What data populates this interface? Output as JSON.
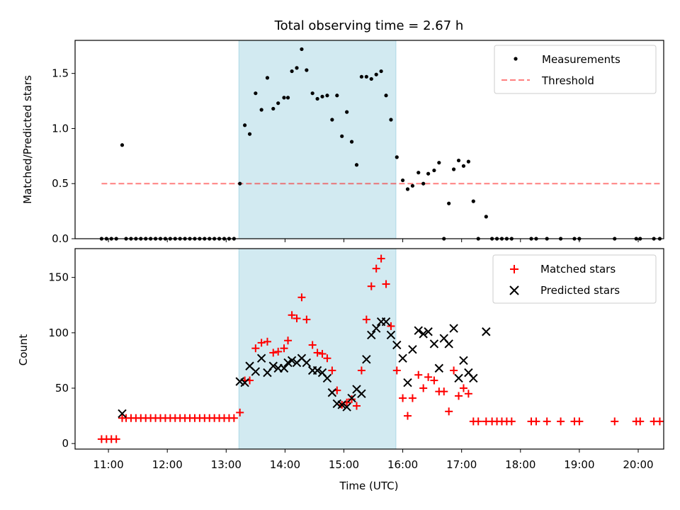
{
  "title": "Total observing time = 2.67 h",
  "colors": {
    "shade": "#add8e6",
    "measurement": "#000000",
    "threshold": "#ff0000",
    "matched": "#ff0000",
    "predicted": "#000000"
  },
  "chart_data": [
    {
      "type": "scatter",
      "title": "Total observing time = 2.67 h",
      "xlabel": "",
      "ylabel": "Matched/Predicted stars",
      "xlim": [
        "10:26",
        "20:26"
      ],
      "ylim": [
        0,
        1.8
      ],
      "yticks": [
        0.0,
        0.5,
        1.0,
        1.5
      ],
      "ytick_labels": [
        "0.0",
        "0.5",
        "1.0",
        "1.5"
      ],
      "shaded_region": [
        "13:13",
        "15:53"
      ],
      "legend": {
        "position": "top-right",
        "entries": [
          "Measurements",
          "Threshold"
        ]
      },
      "series": [
        {
          "name": "Measurements",
          "kind": "points",
          "points": [
            [
              "10:53",
              0
            ],
            [
              "10:58",
              0
            ],
            [
              "11:03",
              0
            ],
            [
              "11:08",
              0
            ],
            [
              "11:14",
              0.85
            ],
            [
              "11:18",
              0
            ],
            [
              "11:23",
              0
            ],
            [
              "11:28",
              0
            ],
            [
              "11:33",
              0
            ],
            [
              "11:38",
              0
            ],
            [
              "11:43",
              0
            ],
            [
              "11:48",
              0
            ],
            [
              "11:53",
              0
            ],
            [
              "11:58",
              0
            ],
            [
              "12:03",
              0
            ],
            [
              "12:08",
              0
            ],
            [
              "12:13",
              0
            ],
            [
              "12:18",
              0
            ],
            [
              "12:23",
              0
            ],
            [
              "12:28",
              0
            ],
            [
              "12:33",
              0
            ],
            [
              "12:38",
              0
            ],
            [
              "12:43",
              0
            ],
            [
              "12:48",
              0
            ],
            [
              "12:53",
              0
            ],
            [
              "12:58",
              0
            ],
            [
              "13:03",
              0
            ],
            [
              "13:08",
              0
            ],
            [
              "13:14",
              0.5
            ],
            [
              "13:19",
              1.03
            ],
            [
              "13:24",
              0.95
            ],
            [
              "13:30",
              1.32
            ],
            [
              "13:36",
              1.17
            ],
            [
              "13:42",
              1.46
            ],
            [
              "13:48",
              1.18
            ],
            [
              "13:53",
              1.23
            ],
            [
              "13:59",
              1.28
            ],
            [
              "14:03",
              1.28
            ],
            [
              "14:07",
              1.52
            ],
            [
              "14:12",
              1.55
            ],
            [
              "14:17",
              1.72
            ],
            [
              "14:22",
              1.53
            ],
            [
              "14:28",
              1.32
            ],
            [
              "14:33",
              1.27
            ],
            [
              "14:38",
              1.29
            ],
            [
              "14:43",
              1.3
            ],
            [
              "14:48",
              1.08
            ],
            [
              "14:53",
              1.3
            ],
            [
              "14:58",
              0.93
            ],
            [
              "15:03",
              1.15
            ],
            [
              "15:08",
              0.88
            ],
            [
              "15:13",
              0.67
            ],
            [
              "15:18",
              1.47
            ],
            [
              "15:23",
              1.47
            ],
            [
              "15:28",
              1.45
            ],
            [
              "15:33",
              1.49
            ],
            [
              "15:38",
              1.52
            ],
            [
              "15:43",
              1.3
            ],
            [
              "15:48",
              1.08
            ],
            [
              "15:54",
              0.74
            ],
            [
              "16:00",
              0.53
            ],
            [
              "16:05",
              0.45
            ],
            [
              "16:10",
              0.48
            ],
            [
              "16:16",
              0.6
            ],
            [
              "16:21",
              0.5
            ],
            [
              "16:26",
              0.59
            ],
            [
              "16:32",
              0.62
            ],
            [
              "16:37",
              0.69
            ],
            [
              "16:42",
              0
            ],
            [
              "16:47",
              0.32
            ],
            [
              "16:52",
              0.63
            ],
            [
              "16:57",
              0.71
            ],
            [
              "17:02",
              0.66
            ],
            [
              "17:07",
              0.7
            ],
            [
              "17:12",
              0.34
            ],
            [
              "17:17",
              0
            ],
            [
              "17:25",
              0.2
            ],
            [
              "17:31",
              0
            ],
            [
              "17:36",
              0
            ],
            [
              "17:41",
              0
            ],
            [
              "17:46",
              0
            ],
            [
              "17:51",
              0
            ],
            [
              "18:11",
              0
            ],
            [
              "18:16",
              0
            ],
            [
              "18:27",
              0
            ],
            [
              "18:41",
              0
            ],
            [
              "18:55",
              0
            ],
            [
              "19:00",
              0
            ],
            [
              "19:36",
              0
            ],
            [
              "19:58",
              0
            ],
            [
              "20:02",
              0
            ],
            [
              "20:16",
              0
            ],
            [
              "20:22",
              0
            ]
          ]
        },
        {
          "name": "Threshold",
          "kind": "dashed-line",
          "points": [
            [
              "10:53",
              0.5
            ],
            [
              "20:22",
              0.5
            ]
          ]
        }
      ]
    },
    {
      "type": "scatter",
      "title": "",
      "xlabel": "Time (UTC)",
      "ylabel": "Count",
      "xlim": [
        "10:26",
        "20:26"
      ],
      "ylim": [
        -5,
        176
      ],
      "yticks": [
        0,
        50,
        100,
        150
      ],
      "ytick_labels": [
        "0",
        "50",
        "100",
        "150"
      ],
      "xticks": [
        "11:00",
        "12:00",
        "13:00",
        "14:00",
        "15:00",
        "16:00",
        "17:00",
        "18:00",
        "19:00",
        "20:00"
      ],
      "shaded_region": [
        "13:13",
        "15:53"
      ],
      "legend": {
        "position": "top-right",
        "entries": [
          "Matched stars",
          "Predicted stars"
        ]
      },
      "series": [
        {
          "name": "Matched stars",
          "marker": "plus",
          "points": [
            [
              "10:53",
              4
            ],
            [
              "10:58",
              4
            ],
            [
              "11:03",
              4
            ],
            [
              "11:08",
              4
            ],
            [
              "11:14",
              23
            ],
            [
              "11:18",
              23
            ],
            [
              "11:23",
              23
            ],
            [
              "11:28",
              23
            ],
            [
              "11:33",
              23
            ],
            [
              "11:38",
              23
            ],
            [
              "11:43",
              23
            ],
            [
              "11:48",
              23
            ],
            [
              "11:53",
              23
            ],
            [
              "11:58",
              23
            ],
            [
              "12:03",
              23
            ],
            [
              "12:08",
              23
            ],
            [
              "12:13",
              23
            ],
            [
              "12:18",
              23
            ],
            [
              "12:23",
              23
            ],
            [
              "12:28",
              23
            ],
            [
              "12:33",
              23
            ],
            [
              "12:38",
              23
            ],
            [
              "12:43",
              23
            ],
            [
              "12:48",
              23
            ],
            [
              "12:53",
              23
            ],
            [
              "12:58",
              23
            ],
            [
              "13:03",
              23
            ],
            [
              "13:08",
              23
            ],
            [
              "13:14",
              28
            ],
            [
              "13:19",
              57
            ],
            [
              "13:24",
              57
            ],
            [
              "13:30",
              86
            ],
            [
              "13:36",
              91
            ],
            [
              "13:42",
              92
            ],
            [
              "13:48",
              82
            ],
            [
              "13:53",
              83
            ],
            [
              "13:59",
              86
            ],
            [
              "14:03",
              93
            ],
            [
              "14:07",
              116
            ],
            [
              "14:12",
              113
            ],
            [
              "14:17",
              132
            ],
            [
              "14:22",
              112
            ],
            [
              "14:28",
              89
            ],
            [
              "14:33",
              82
            ],
            [
              "14:38",
              81
            ],
            [
              "14:43",
              77
            ],
            [
              "14:48",
              66
            ],
            [
              "14:53",
              48
            ],
            [
              "14:58",
              35
            ],
            [
              "15:03",
              37
            ],
            [
              "15:08",
              40
            ],
            [
              "15:13",
              34
            ],
            [
              "15:18",
              66
            ],
            [
              "15:23",
              112
            ],
            [
              "15:28",
              142
            ],
            [
              "15:33",
              158
            ],
            [
              "15:38",
              167
            ],
            [
              "15:43",
              144
            ],
            [
              "15:48",
              106
            ],
            [
              "15:54",
              66
            ],
            [
              "16:00",
              41
            ],
            [
              "16:05",
              25
            ],
            [
              "16:10",
              41
            ],
            [
              "16:16",
              62
            ],
            [
              "16:21",
              50
            ],
            [
              "16:26",
              60
            ],
            [
              "16:32",
              57
            ],
            [
              "16:37",
              47
            ],
            [
              "16:42",
              47
            ],
            [
              "16:47",
              29
            ],
            [
              "16:52",
              66
            ],
            [
              "16:57",
              43
            ],
            [
              "17:02",
              50
            ],
            [
              "17:07",
              45
            ],
            [
              "17:12",
              20
            ],
            [
              "17:17",
              20
            ],
            [
              "17:25",
              20
            ],
            [
              "17:31",
              20
            ],
            [
              "17:36",
              20
            ],
            [
              "17:41",
              20
            ],
            [
              "17:46",
              20
            ],
            [
              "17:51",
              20
            ],
            [
              "18:11",
              20
            ],
            [
              "18:16",
              20
            ],
            [
              "18:27",
              20
            ],
            [
              "18:41",
              20
            ],
            [
              "18:55",
              20
            ],
            [
              "19:00",
              20
            ],
            [
              "19:36",
              20
            ],
            [
              "19:58",
              20
            ],
            [
              "20:02",
              20
            ],
            [
              "20:16",
              20
            ],
            [
              "20:22",
              20
            ]
          ]
        },
        {
          "name": "Predicted stars",
          "marker": "x",
          "points": [
            [
              "11:14",
              27
            ],
            [
              "13:14",
              56
            ],
            [
              "13:19",
              55
            ],
            [
              "13:24",
              70
            ],
            [
              "13:30",
              65
            ],
            [
              "13:36",
              77
            ],
            [
              "13:42",
              64
            ],
            [
              "13:48",
              70
            ],
            [
              "13:53",
              68
            ],
            [
              "13:59",
              68
            ],
            [
              "14:03",
              73
            ],
            [
              "14:07",
              75
            ],
            [
              "14:12",
              73
            ],
            [
              "14:17",
              77
            ],
            [
              "14:22",
              73
            ],
            [
              "14:28",
              66
            ],
            [
              "14:33",
              66
            ],
            [
              "14:38",
              64
            ],
            [
              "14:43",
              59
            ],
            [
              "14:48",
              46
            ],
            [
              "14:53",
              36
            ],
            [
              "14:58",
              35
            ],
            [
              "15:03",
              33
            ],
            [
              "15:08",
              41
            ],
            [
              "15:13",
              49
            ],
            [
              "15:18",
              45
            ],
            [
              "15:23",
              76
            ],
            [
              "15:28",
              98
            ],
            [
              "15:33",
              104
            ],
            [
              "15:38",
              110
            ],
            [
              "15:43",
              110
            ],
            [
              "15:48",
              98
            ],
            [
              "15:54",
              89
            ],
            [
              "16:00",
              77
            ],
            [
              "16:05",
              55
            ],
            [
              "16:10",
              85
            ],
            [
              "16:16",
              102
            ],
            [
              "16:21",
              99
            ],
            [
              "16:26",
              101
            ],
            [
              "16:32",
              90
            ],
            [
              "16:37",
              68
            ],
            [
              "16:42",
              95
            ],
            [
              "16:47",
              90
            ],
            [
              "16:52",
              104
            ],
            [
              "16:57",
              59
            ],
            [
              "17:02",
              75
            ],
            [
              "17:07",
              64
            ],
            [
              "17:12",
              59
            ],
            [
              "17:25",
              101
            ]
          ]
        }
      ]
    }
  ]
}
